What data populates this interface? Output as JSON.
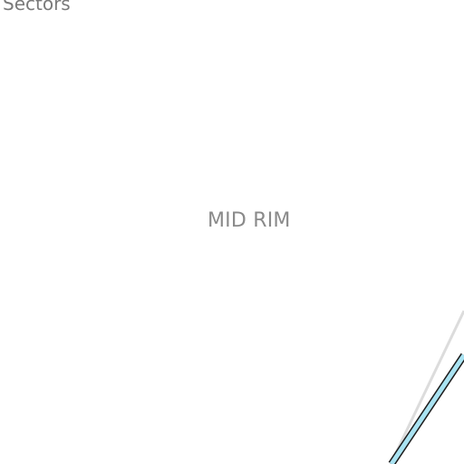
{
  "map": {
    "layer_title": "Sectors",
    "area_label": "MID RIM",
    "colors": {
      "background": "#ffffff",
      "label_text": "#8a8a8a",
      "route_fill": "#a9e3f2",
      "route_casing": "#1c1c1c",
      "trail": "#dcdcdc"
    },
    "features": [
      {
        "type": "route",
        "style": "light-blue casing line"
      },
      {
        "type": "trail",
        "style": "thin light-gray line"
      }
    ]
  }
}
